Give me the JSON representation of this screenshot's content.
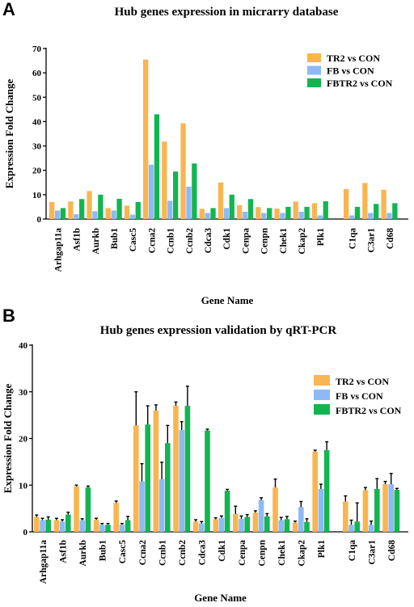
{
  "figure": {
    "panel_a_label": "A",
    "panel_b_label": "B"
  },
  "chart_data": [
    {
      "type": "bar",
      "title": "Hub genes expression in micrarry database",
      "xlabel": "Gene Name",
      "ylabel": "Expression Fold Change",
      "ylim": [
        0,
        70
      ],
      "yticks": [
        0,
        10,
        20,
        30,
        40,
        50,
        60,
        70
      ],
      "legend_position": "top-right",
      "categories": [
        "Arhgap11a",
        "Asf1b",
        "Aurkb",
        "Bub1",
        "Casc5",
        "Ccna2",
        "Ccnb1",
        "Ccnb2",
        "Cdca3",
        "Cdk1",
        "Cenpa",
        "Cenpn",
        "Chek1",
        "Ckap2",
        "Plk1",
        "C1qa",
        "C3ar1",
        "Cd68"
      ],
      "series": [
        {
          "name": "TR2 vs CON",
          "color": "#F9B550",
          "values": [
            7.0,
            7.2,
            11.5,
            4.5,
            5.5,
            65.5,
            31.8,
            39.3,
            4.2,
            15.0,
            5.7,
            4.9,
            4.3,
            7.2,
            6.5,
            12.3,
            14.8,
            12.0
          ]
        },
        {
          "name": "FB  vs CON",
          "color": "#8DBAF5",
          "values": [
            3.5,
            2.0,
            3.2,
            3.5,
            1.8,
            22.3,
            7.5,
            13.3,
            2.5,
            4.5,
            3.0,
            2.5,
            2.5,
            3.0,
            1.5,
            1.5,
            2.5,
            2.5
          ]
        },
        {
          "name": "FBTR2 vs CON",
          "color": "#12B650",
          "values": [
            4.5,
            8.2,
            10.0,
            8.3,
            7.0,
            43.0,
            19.5,
            22.8,
            4.5,
            10.0,
            8.2,
            4.5,
            5.0,
            5.0,
            7.3,
            5.0,
            6.2,
            6.5
          ]
        }
      ]
    },
    {
      "type": "bar",
      "title": "Hub genes expression validation by qRT-PCR",
      "xlabel": "Gene Name",
      "ylabel": "Expression Fold Change",
      "ylim": [
        0,
        40
      ],
      "yticks": [
        0,
        10,
        20,
        30,
        40
      ],
      "legend_position": "top-right",
      "error_bars": true,
      "categories": [
        "Arhgap11a",
        "Asf1b",
        "Aurkb",
        "Bub1",
        "Casc5",
        "Ccna2",
        "Ccnb1",
        "Ccnb2",
        "Cdca3",
        "Cdk1",
        "Cenpa",
        "Cenpn",
        "Chek1",
        "Ckap2",
        "Plk1",
        "C1qa",
        "C3ar1",
        "Cd68"
      ],
      "series": [
        {
          "name": "TR2 vs CON",
          "color": "#F9B550",
          "values": [
            3.2,
            2.5,
            9.7,
            2.6,
            6.2,
            22.8,
            26.0,
            27.0,
            2.2,
            2.7,
            3.8,
            4.1,
            9.5,
            2.0,
            17.2,
            6.5,
            8.9,
            10.2
          ],
          "errors": [
            0.4,
            0.4,
            0.3,
            0.3,
            0.4,
            7.2,
            1.2,
            0.8,
            0.4,
            0.3,
            1.7,
            0.4,
            1.8,
            0.3,
            0.3,
            1.2,
            0.6,
            0.6
          ]
        },
        {
          "name": "FB  vs CON",
          "color": "#8DBAF5",
          "values": [
            2.5,
            2.2,
            2.5,
            1.5,
            1.5,
            10.8,
            11.3,
            21.8,
            1.8,
            3.0,
            2.8,
            6.8,
            2.5,
            5.3,
            9.2,
            1.5,
            1.5,
            10.2
          ],
          "errors": [
            0.4,
            0.4,
            0.3,
            0.3,
            0.3,
            3.8,
            3.6,
            1.8,
            0.4,
            0.4,
            0.6,
            0.5,
            0.6,
            1.2,
            1.0,
            1.0,
            0.8,
            2.3
          ]
        },
        {
          "name": "FBTR2 vs CON",
          "color": "#12B650",
          "values": [
            2.6,
            3.7,
            9.5,
            1.5,
            2.5,
            23.0,
            19.0,
            27.0,
            21.7,
            8.8,
            3.2,
            3.3,
            2.7,
            2.1,
            17.5,
            2.2,
            9.2,
            9.0
          ],
          "errors": [
            0.6,
            0.5,
            0.3,
            0.3,
            0.8,
            4.0,
            3.8,
            4.2,
            0.3,
            0.3,
            0.5,
            0.6,
            0.6,
            0.7,
            1.8,
            4.0,
            2.2,
            0.3
          ]
        }
      ]
    }
  ]
}
